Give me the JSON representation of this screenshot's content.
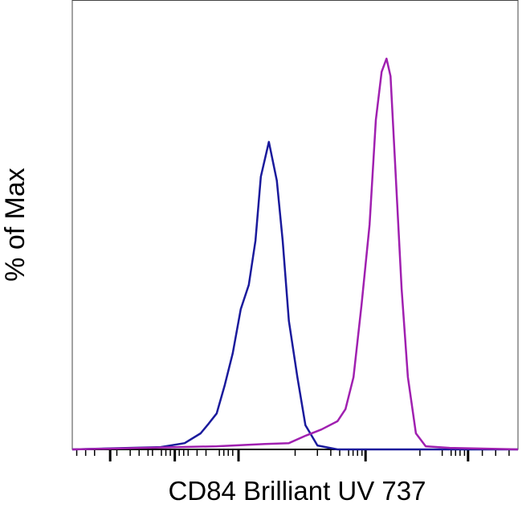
{
  "chart_data": {
    "type": "line",
    "xlabel": "CD84 Brilliant UV 737",
    "ylabel": "% of Max",
    "xlim": [
      0,
      100
    ],
    "ylim": [
      0,
      115
    ],
    "xticks": [
      8.5,
      23,
      37.3,
      65.8,
      88.8
    ],
    "xminor_ticks": [
      1,
      3,
      5,
      10,
      13,
      15,
      17,
      18,
      20,
      21,
      22,
      24,
      25,
      26,
      28,
      30,
      33,
      34,
      35,
      36,
      50,
      55,
      58,
      60,
      62,
      63,
      64,
      65,
      78,
      83,
      85,
      86,
      87,
      88,
      92,
      95,
      98
    ],
    "series": [
      {
        "color": "#1a1a9c",
        "x": [
          0,
          19.8,
          25.2,
          28.8,
          30.6,
          32.4,
          34.2,
          36.0,
          37.8,
          39.6,
          41.1,
          42.3,
          44.1,
          45.9,
          47.2,
          48.6,
          50.5,
          52.3,
          55.0,
          59.5,
          100
        ],
        "values": [
          0,
          0.6,
          1.6,
          4.1,
          6.6,
          9.2,
          16.4,
          24.6,
          35.9,
          42.1,
          53.4,
          69.8,
          78.7,
          68.8,
          53.4,
          32.9,
          18.5,
          6.2,
          1.0,
          0,
          0
        ]
      },
      {
        "color": "#a020b0",
        "x": [
          0,
          32.4,
          43.2,
          48.6,
          52.3,
          55.9,
          59.5,
          61.3,
          63.1,
          64.9,
          66.7,
          68.1,
          69.4,
          70.5,
          71.4,
          72.4,
          73.9,
          75.3,
          77.1,
          79.3,
          84.7,
          100
        ],
        "values": [
          0,
          0.8,
          1.4,
          1.6,
          3.5,
          5.1,
          7.2,
          10.3,
          18.5,
          37.0,
          57.5,
          84.3,
          96.6,
          100,
          95.5,
          73.9,
          41.1,
          18.5,
          4.1,
          0.8,
          0.4,
          0
        ]
      }
    ]
  }
}
